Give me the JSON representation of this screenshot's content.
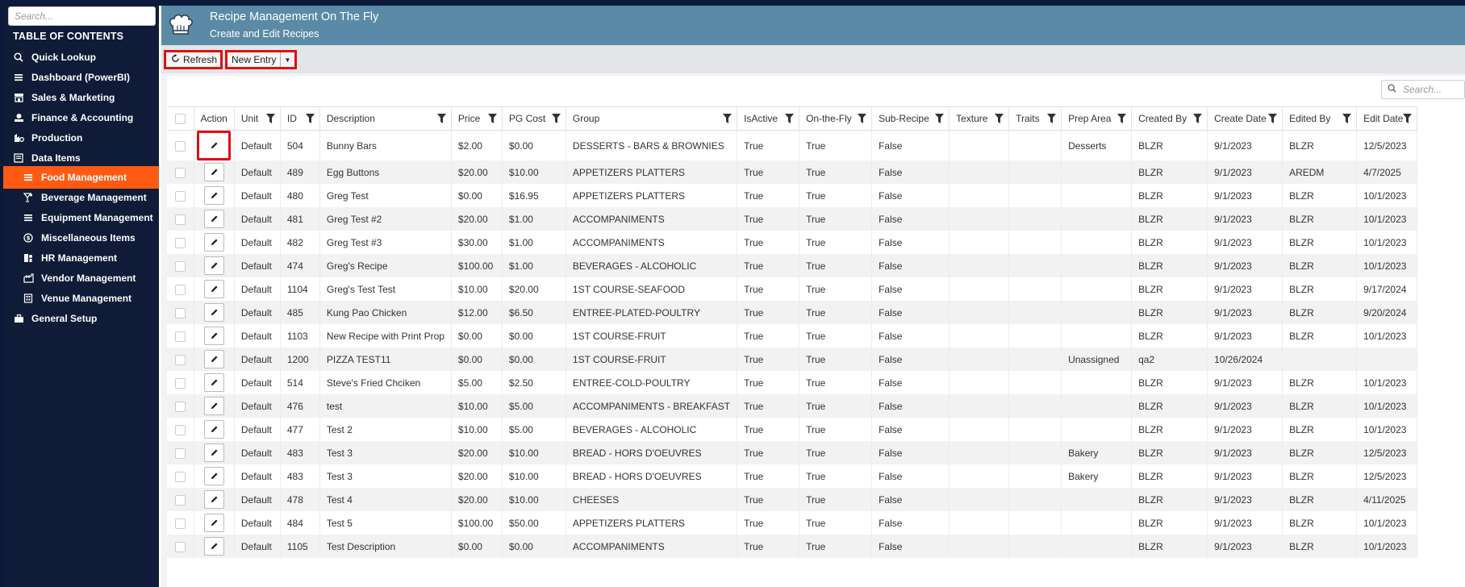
{
  "sidebar": {
    "search_placeholder": "Search...",
    "toc_title": "TABLE OF CONTENTS",
    "items": [
      {
        "label": "Quick Lookup",
        "icon": "search-icon",
        "level": 1,
        "active": false
      },
      {
        "label": "Dashboard (PowerBI)",
        "icon": "menu-icon",
        "level": 1,
        "active": false
      },
      {
        "label": "Sales & Marketing",
        "icon": "store-icon",
        "level": 1,
        "active": false
      },
      {
        "label": "Finance & Accounting",
        "icon": "money-icon",
        "level": 1,
        "active": false
      },
      {
        "label": "Production",
        "icon": "production-icon",
        "level": 1,
        "active": false
      },
      {
        "label": "Data Items",
        "icon": "list-icon",
        "level": 1,
        "active": false
      },
      {
        "label": "Food Management",
        "icon": "menu-icon",
        "level": 2,
        "active": true
      },
      {
        "label": "Beverage Management",
        "icon": "cocktail-icon",
        "level": 2,
        "active": false
      },
      {
        "label": "Equipment Management",
        "icon": "menu-icon",
        "level": 2,
        "active": false
      },
      {
        "label": "Miscellaneous Items",
        "icon": "dollar-circle-icon",
        "level": 2,
        "active": false
      },
      {
        "label": "HR Management",
        "icon": "person-icon",
        "level": 2,
        "active": false
      },
      {
        "label": "Vendor Management",
        "icon": "factory-icon",
        "level": 2,
        "active": false
      },
      {
        "label": "Venue Management",
        "icon": "building-icon",
        "level": 2,
        "active": false
      },
      {
        "label": "General Setup",
        "icon": "toolbox-icon",
        "level": 1,
        "active": false
      }
    ]
  },
  "header": {
    "title": "Recipe Management On The Fly",
    "subtitle": "Create and Edit Recipes"
  },
  "toolbar": {
    "refresh_label": "Refresh",
    "new_entry_label": "New Entry"
  },
  "grid": {
    "search_placeholder": "Search...",
    "columns": [
      "Action",
      "Unit",
      "ID",
      "Description",
      "Price",
      "PG Cost",
      "Group",
      "IsActive",
      "On-the-Fly",
      "Sub-Recipe",
      "Texture",
      "Traits",
      "Prep Area",
      "Created By",
      "Create Date",
      "Edited By",
      "Edit Date"
    ],
    "rows": [
      {
        "unit": "Default",
        "id": "504",
        "description": "Bunny Bars",
        "price": "$2.00",
        "pg_cost": "$0.00",
        "group": "DESSERTS - BARS & BROWNIES",
        "is_active": "True",
        "on_the_fly": "True",
        "sub_recipe": "False",
        "texture": "",
        "traits": "",
        "prep_area": "Desserts",
        "created_by": "BLZR",
        "create_date": "9/1/2023",
        "edited_by": "BLZR",
        "edit_date": "12/5/2023"
      },
      {
        "unit": "Default",
        "id": "489",
        "description": "Egg Buttons",
        "price": "$20.00",
        "pg_cost": "$10.00",
        "group": "APPETIZERS PLATTERS",
        "is_active": "True",
        "on_the_fly": "True",
        "sub_recipe": "False",
        "texture": "",
        "traits": "",
        "prep_area": "",
        "created_by": "BLZR",
        "create_date": "9/1/2023",
        "edited_by": "AREDM",
        "edit_date": "4/7/2025"
      },
      {
        "unit": "Default",
        "id": "480",
        "description": "Greg Test",
        "price": "$0.00",
        "pg_cost": "$16.95",
        "group": "APPETIZERS PLATTERS",
        "is_active": "True",
        "on_the_fly": "True",
        "sub_recipe": "False",
        "texture": "",
        "traits": "",
        "prep_area": "",
        "created_by": "BLZR",
        "create_date": "9/1/2023",
        "edited_by": "BLZR",
        "edit_date": "10/1/2023"
      },
      {
        "unit": "Default",
        "id": "481",
        "description": "Greg Test #2",
        "price": "$20.00",
        "pg_cost": "$1.00",
        "group": "ACCOMPANIMENTS",
        "is_active": "True",
        "on_the_fly": "True",
        "sub_recipe": "False",
        "texture": "",
        "traits": "",
        "prep_area": "",
        "created_by": "BLZR",
        "create_date": "9/1/2023",
        "edited_by": "BLZR",
        "edit_date": "10/1/2023"
      },
      {
        "unit": "Default",
        "id": "482",
        "description": "Greg Test #3",
        "price": "$30.00",
        "pg_cost": "$1.00",
        "group": "ACCOMPANIMENTS",
        "is_active": "True",
        "on_the_fly": "True",
        "sub_recipe": "False",
        "texture": "",
        "traits": "",
        "prep_area": "",
        "created_by": "BLZR",
        "create_date": "9/1/2023",
        "edited_by": "BLZR",
        "edit_date": "10/1/2023"
      },
      {
        "unit": "Default",
        "id": "474",
        "description": "Greg's Recipe",
        "price": "$100.00",
        "pg_cost": "$1.00",
        "group": "BEVERAGES - ALCOHOLIC",
        "is_active": "True",
        "on_the_fly": "True",
        "sub_recipe": "False",
        "texture": "",
        "traits": "",
        "prep_area": "",
        "created_by": "BLZR",
        "create_date": "9/1/2023",
        "edited_by": "BLZR",
        "edit_date": "10/1/2023"
      },
      {
        "unit": "Default",
        "id": "1104",
        "description": "Greg's Test Test",
        "price": "$10.00",
        "pg_cost": "$20.00",
        "group": "1ST COURSE-SEAFOOD",
        "is_active": "True",
        "on_the_fly": "True",
        "sub_recipe": "False",
        "texture": "",
        "traits": "",
        "prep_area": "",
        "created_by": "BLZR",
        "create_date": "9/1/2023",
        "edited_by": "BLZR",
        "edit_date": "9/17/2024"
      },
      {
        "unit": "Default",
        "id": "485",
        "description": "Kung Pao Chicken",
        "price": "$12.00",
        "pg_cost": "$6.50",
        "group": "ENTREE-PLATED-POULTRY",
        "is_active": "True",
        "on_the_fly": "True",
        "sub_recipe": "False",
        "texture": "",
        "traits": "",
        "prep_area": "",
        "created_by": "BLZR",
        "create_date": "9/1/2023",
        "edited_by": "BLZR",
        "edit_date": "9/20/2024"
      },
      {
        "unit": "Default",
        "id": "1103",
        "description": "New Recipe with Print Prop",
        "price": "$0.00",
        "pg_cost": "$0.00",
        "group": "1ST COURSE-FRUIT",
        "is_active": "True",
        "on_the_fly": "True",
        "sub_recipe": "False",
        "texture": "",
        "traits": "",
        "prep_area": "",
        "created_by": "BLZR",
        "create_date": "9/1/2023",
        "edited_by": "BLZR",
        "edit_date": "10/1/2023"
      },
      {
        "unit": "Default",
        "id": "1200",
        "description": "PIZZA TEST11",
        "price": "$0.00",
        "pg_cost": "$0.00",
        "group": "1ST COURSE-FRUIT",
        "is_active": "True",
        "on_the_fly": "True",
        "sub_recipe": "False",
        "texture": "",
        "traits": "",
        "prep_area": "Unassigned",
        "created_by": "qa2",
        "create_date": "10/26/2024",
        "edited_by": "",
        "edit_date": ""
      },
      {
        "unit": "Default",
        "id": "514",
        "description": "Steve's Fried Chciken",
        "price": "$5.00",
        "pg_cost": "$2.50",
        "group": "ENTREE-COLD-POULTRY",
        "is_active": "True",
        "on_the_fly": "True",
        "sub_recipe": "False",
        "texture": "",
        "traits": "",
        "prep_area": "",
        "created_by": "BLZR",
        "create_date": "9/1/2023",
        "edited_by": "BLZR",
        "edit_date": "10/1/2023"
      },
      {
        "unit": "Default",
        "id": "476",
        "description": "test",
        "price": "$10.00",
        "pg_cost": "$5.00",
        "group": "ACCOMPANIMENTS - BREAKFAST",
        "is_active": "True",
        "on_the_fly": "True",
        "sub_recipe": "False",
        "texture": "",
        "traits": "",
        "prep_area": "",
        "created_by": "BLZR",
        "create_date": "9/1/2023",
        "edited_by": "BLZR",
        "edit_date": "10/1/2023"
      },
      {
        "unit": "Default",
        "id": "477",
        "description": "Test 2",
        "price": "$10.00",
        "pg_cost": "$5.00",
        "group": "BEVERAGES - ALCOHOLIC",
        "is_active": "True",
        "on_the_fly": "True",
        "sub_recipe": "False",
        "texture": "",
        "traits": "",
        "prep_area": "",
        "created_by": "BLZR",
        "create_date": "9/1/2023",
        "edited_by": "BLZR",
        "edit_date": "10/1/2023"
      },
      {
        "unit": "Default",
        "id": "483",
        "description": "Test 3",
        "price": "$20.00",
        "pg_cost": "$10.00",
        "group": "BREAD - HORS D'OEUVRES",
        "is_active": "True",
        "on_the_fly": "True",
        "sub_recipe": "False",
        "texture": "",
        "traits": "",
        "prep_area": "Bakery",
        "created_by": "BLZR",
        "create_date": "9/1/2023",
        "edited_by": "BLZR",
        "edit_date": "12/5/2023"
      },
      {
        "unit": "Default",
        "id": "483",
        "description": "Test 3",
        "price": "$20.00",
        "pg_cost": "$10.00",
        "group": "BREAD - HORS D'OEUVRES",
        "is_active": "True",
        "on_the_fly": "True",
        "sub_recipe": "False",
        "texture": "",
        "traits": "",
        "prep_area": "Bakery",
        "created_by": "BLZR",
        "create_date": "9/1/2023",
        "edited_by": "BLZR",
        "edit_date": "12/5/2023"
      },
      {
        "unit": "Default",
        "id": "478",
        "description": "Test 4",
        "price": "$20.00",
        "pg_cost": "$10.00",
        "group": "CHEESES",
        "is_active": "True",
        "on_the_fly": "True",
        "sub_recipe": "False",
        "texture": "",
        "traits": "",
        "prep_area": "",
        "created_by": "BLZR",
        "create_date": "9/1/2023",
        "edited_by": "BLZR",
        "edit_date": "4/11/2025"
      },
      {
        "unit": "Default",
        "id": "484",
        "description": "Test 5",
        "price": "$100.00",
        "pg_cost": "$50.00",
        "group": "APPETIZERS PLATTERS",
        "is_active": "True",
        "on_the_fly": "True",
        "sub_recipe": "False",
        "texture": "",
        "traits": "",
        "prep_area": "",
        "created_by": "BLZR",
        "create_date": "9/1/2023",
        "edited_by": "BLZR",
        "edit_date": "10/1/2023"
      },
      {
        "unit": "Default",
        "id": "1105",
        "description": "Test Description",
        "price": "$0.00",
        "pg_cost": "$0.00",
        "group": "ACCOMPANIMENTS",
        "is_active": "True",
        "on_the_fly": "True",
        "sub_recipe": "False",
        "texture": "",
        "traits": "",
        "prep_area": "",
        "created_by": "BLZR",
        "create_date": "9/1/2023",
        "edited_by": "BLZR",
        "edit_date": "10/1/2023"
      }
    ]
  },
  "colors": {
    "sidebar_bg": "#0f1b37",
    "active_item": "#ff5a14",
    "header_bg": "#5a8aa6",
    "highlight_border": "#e01010"
  }
}
